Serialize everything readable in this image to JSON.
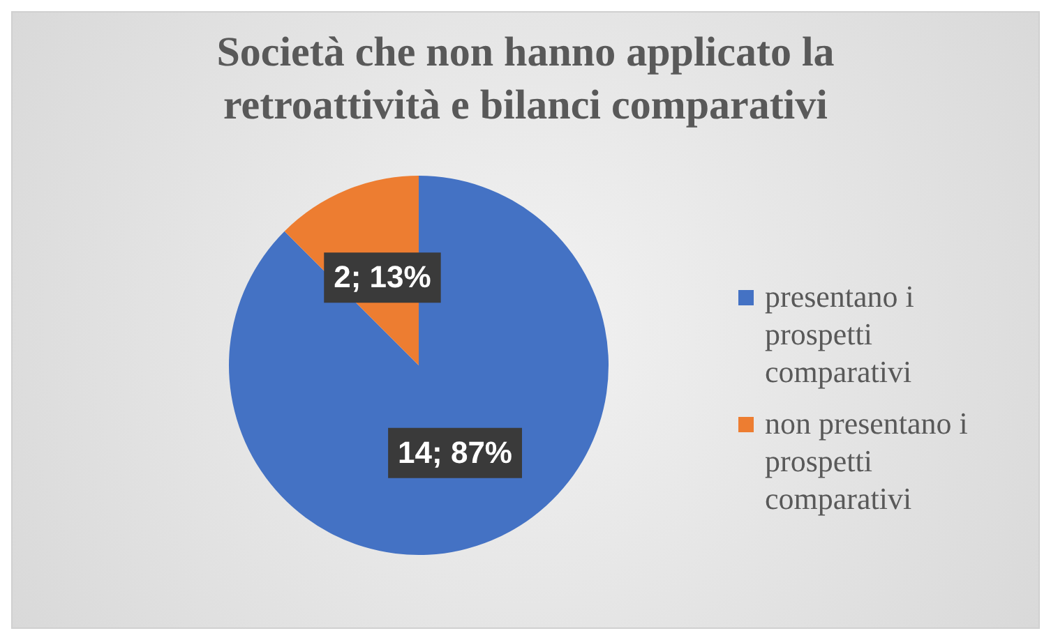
{
  "chart_data": {
    "type": "pie",
    "title": "Società che non hanno applicato la retroattività e bilanci comparativi",
    "categories": [
      "presentano i prospetti comparativi",
      "non presentano i prospetti comparativi"
    ],
    "values": [
      14,
      2
    ],
    "colors": [
      "#4472c4",
      "#ed7d31"
    ],
    "value_labels": [
      "14; 87%",
      "2; 13%"
    ],
    "legend": "right"
  }
}
